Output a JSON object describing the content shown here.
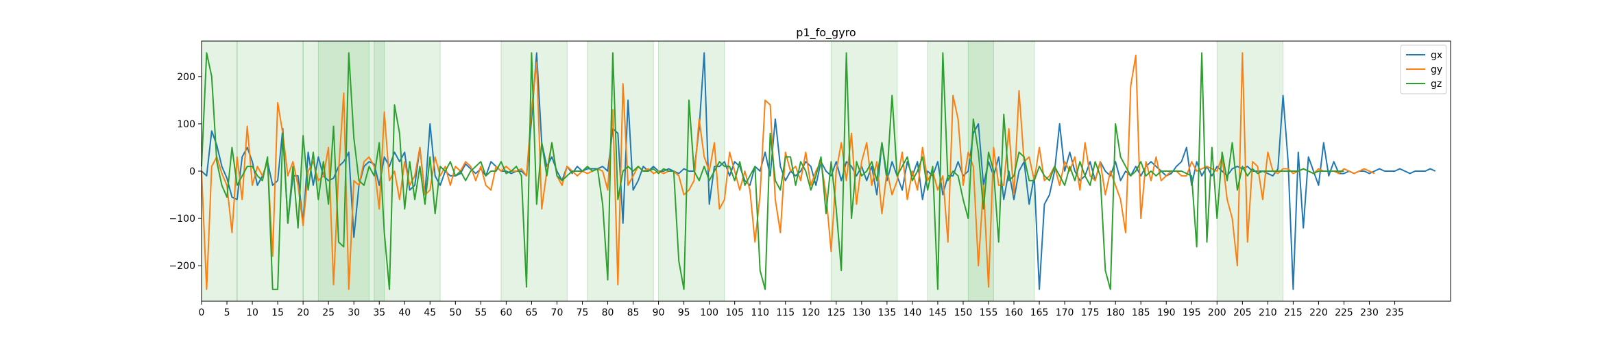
{
  "chart_data": {
    "type": "line",
    "title": "p1_fo_gyro",
    "xlabel": "",
    "ylabel": "",
    "xlim": [
      0,
      246
    ],
    "ylim": [
      -275,
      275
    ],
    "xticks": [
      0,
      5,
      10,
      15,
      20,
      25,
      30,
      35,
      40,
      45,
      50,
      55,
      60,
      65,
      70,
      75,
      80,
      85,
      90,
      95,
      100,
      105,
      110,
      115,
      120,
      125,
      130,
      135,
      140,
      145,
      150,
      155,
      160,
      165,
      170,
      175,
      180,
      185,
      190,
      195,
      200,
      205,
      210,
      215,
      220,
      225,
      230,
      235
    ],
    "yticks": [
      -200,
      -100,
      0,
      100,
      200
    ],
    "legend_position": "top-right",
    "grid": false,
    "shaded_regions": [
      [
        0,
        7
      ],
      [
        7,
        20
      ],
      [
        20,
        36
      ],
      [
        23,
        33
      ],
      [
        34,
        47
      ],
      [
        59,
        72
      ],
      [
        76,
        89
      ],
      [
        90,
        103
      ],
      [
        124,
        137
      ],
      [
        143,
        156
      ],
      [
        151,
        164
      ],
      [
        200,
        213
      ]
    ],
    "series": [
      {
        "name": "gx",
        "color": "#1f77b4",
        "values": [
          0,
          -10,
          85,
          55,
          10,
          -15,
          -55,
          -60,
          30,
          50,
          20,
          -30,
          -10,
          20,
          -30,
          -20,
          90,
          -110,
          -10,
          -10,
          -110,
          40,
          -30,
          30,
          -10,
          -20,
          -15,
          10,
          20,
          40,
          -140,
          -30,
          10,
          20,
          15,
          -30,
          30,
          10,
          40,
          20,
          40,
          -40,
          -30,
          50,
          -50,
          100,
          -10,
          -30,
          0,
          -10,
          -10,
          -5,
          15,
          5,
          -5,
          5,
          -10,
          20,
          10,
          0,
          0,
          -5,
          0,
          0,
          -10,
          110,
          250,
          60,
          10,
          30,
          0,
          -20,
          10,
          -5,
          10,
          0,
          5,
          5,
          5,
          10,
          0,
          90,
          80,
          -110,
          150,
          -40,
          -20,
          10,
          0,
          10,
          0,
          0,
          5,
          0,
          -5,
          5,
          0,
          0,
          90,
          250,
          -70,
          10,
          10,
          20,
          -10,
          20,
          10,
          -20,
          -30,
          10,
          0,
          40,
          -10,
          110,
          10,
          -20,
          0,
          -10,
          0,
          20,
          10,
          -30,
          20,
          0,
          -10,
          20,
          -20,
          20,
          10,
          -10,
          10,
          -20,
          10,
          -50,
          60,
          -20,
          20,
          -10,
          -40,
          20,
          -10,
          20,
          -60,
          0,
          -10,
          20,
          -50,
          -10,
          -10,
          20,
          -10,
          0,
          80,
          100,
          -30,
          20,
          -10,
          30,
          -60,
          0,
          -60,
          0,
          20,
          -70,
          -10,
          -250,
          -70,
          -50,
          0,
          100,
          0,
          40,
          0,
          -20,
          -10,
          20,
          -20,
          20,
          0,
          -10,
          20,
          -20,
          0,
          -10,
          10,
          -10,
          10,
          20,
          10,
          0,
          -10,
          -5,
          10,
          20,
          50,
          -30,
          20,
          -10,
          10,
          -10,
          10,
          0,
          -10,
          5,
          10,
          5,
          10,
          0,
          0,
          0,
          -5,
          -10,
          5,
          160,
          20,
          -250,
          40,
          -120,
          30,
          0,
          -30,
          60,
          -10,
          20,
          -5,
          -5,
          0,
          -5,
          0,
          0,
          -5,
          0,
          5,
          0,
          0,
          0,
          5,
          0,
          -5,
          0,
          0,
          0,
          5,
          0
        ]
      },
      {
        "name": "gy",
        "color": "#ff7f0e",
        "values": [
          0,
          -250,
          10,
          30,
          -5,
          -30,
          -130,
          30,
          -60,
          95,
          -30,
          10,
          -10,
          20,
          -180,
          145,
          80,
          -10,
          20,
          -30,
          -115,
          0,
          20,
          -20,
          -10,
          50,
          -240,
          0,
          165,
          -250,
          -20,
          -30,
          20,
          30,
          10,
          -80,
          125,
          -20,
          0,
          -60,
          20,
          -30,
          -10,
          50,
          -50,
          -40,
          30,
          -10,
          10,
          -30,
          10,
          0,
          20,
          10,
          -20,
          10,
          -30,
          -40,
          10,
          0,
          10,
          0,
          0,
          5,
          -10,
          130,
          230,
          -80,
          0,
          60,
          -10,
          -30,
          10,
          0,
          -10,
          0,
          -5,
          0,
          5,
          0,
          -40,
          130,
          -240,
          185,
          -30,
          -10,
          10,
          0,
          5,
          -5,
          0,
          -5,
          0,
          0,
          -10,
          -50,
          -40,
          -20,
          110,
          30,
          0,
          60,
          -80,
          -60,
          40,
          0,
          -40,
          0,
          -40,
          -150,
          -50,
          150,
          140,
          -60,
          -130,
          40,
          0,
          10,
          -20,
          40,
          -30,
          0,
          20,
          -50,
          -170,
          0,
          60,
          -20,
          80,
          -70,
          20,
          60,
          -30,
          20,
          -90,
          0,
          -50,
          -20,
          40,
          -60,
          0,
          -40,
          50,
          -20,
          0,
          -40,
          -10,
          -150,
          160,
          110,
          -30,
          40,
          10,
          -200,
          -30,
          -245,
          50,
          -30,
          -30,
          90,
          -50,
          170,
          20,
          30,
          -20,
          50,
          -20,
          -10,
          10,
          -30,
          20,
          0,
          30,
          -40,
          60,
          -10,
          -20,
          20,
          -50,
          0,
          -30,
          -60,
          -130,
          180,
          245,
          -100,
          20,
          -20,
          30,
          -20,
          -10,
          0,
          0,
          -10,
          -10,
          20,
          0,
          5,
          10,
          5,
          0,
          30,
          -60,
          -100,
          -200,
          250,
          -150,
          20,
          10,
          -60,
          40,
          0,
          -5,
          5,
          5,
          -5,
          0,
          5,
          0,
          -5,
          5,
          0,
          0,
          0,
          -5,
          5,
          0,
          -5,
          0,
          5,
          0,
          -5
        ]
      },
      {
        "name": "gz",
        "color": "#2ca02c",
        "values": [
          10,
          250,
          200,
          20,
          -30,
          -55,
          50,
          -30,
          -10,
          10,
          10,
          -10,
          -20,
          30,
          -250,
          -250,
          80,
          -110,
          10,
          -120,
          75,
          -40,
          40,
          -60,
          20,
          -70,
          95,
          -150,
          -160,
          250,
          70,
          -20,
          -30,
          10,
          -10,
          60,
          -130,
          -250,
          140,
          80,
          -80,
          20,
          -60,
          10,
          -70,
          30,
          -90,
          10,
          0,
          20,
          -10,
          0,
          -20,
          0,
          10,
          20,
          -10,
          0,
          0,
          20,
          -5,
          0,
          10,
          -10,
          -245,
          250,
          -70,
          60,
          -10,
          60,
          -10,
          -20,
          -10,
          0,
          0,
          0,
          10,
          0,
          5,
          -70,
          -230,
          250,
          -60,
          0,
          10,
          0,
          10,
          0,
          0,
          5,
          -5,
          5,
          0,
          0,
          -190,
          -250,
          150,
          0,
          -20,
          10,
          -20,
          0,
          20,
          10,
          10,
          -20,
          20,
          -30,
          -10,
          10,
          -210,
          -250,
          80,
          -20,
          -40,
          30,
          30,
          -30,
          20,
          0,
          -40,
          -10,
          30,
          -90,
          20,
          -80,
          -210,
          250,
          -100,
          20,
          -10,
          0,
          20,
          -20,
          60,
          -10,
          160,
          -10,
          10,
          30,
          -20,
          0,
          30,
          -40,
          10,
          -250,
          250,
          -20,
          0,
          -10,
          -60,
          -100,
          110,
          40,
          -80,
          40,
          0,
          -150,
          120,
          -20,
          -10,
          40,
          30,
          -20,
          -20,
          10,
          -10,
          -20,
          10,
          -10,
          -30,
          10,
          -20,
          20,
          -10,
          -30,
          20,
          -10,
          -210,
          -250,
          100,
          30,
          10,
          -10,
          0,
          20,
          -10,
          0,
          -10,
          0,
          0,
          0,
          0,
          0,
          -5,
          -10,
          -160,
          250,
          -150,
          50,
          -100,
          40,
          -20,
          60,
          -40,
          10,
          -10,
          5,
          -5,
          0,
          0,
          0,
          0,
          0,
          0,
          0,
          0,
          5,
          0,
          -5,
          0,
          0,
          0,
          0,
          0,
          0
        ]
      }
    ]
  }
}
